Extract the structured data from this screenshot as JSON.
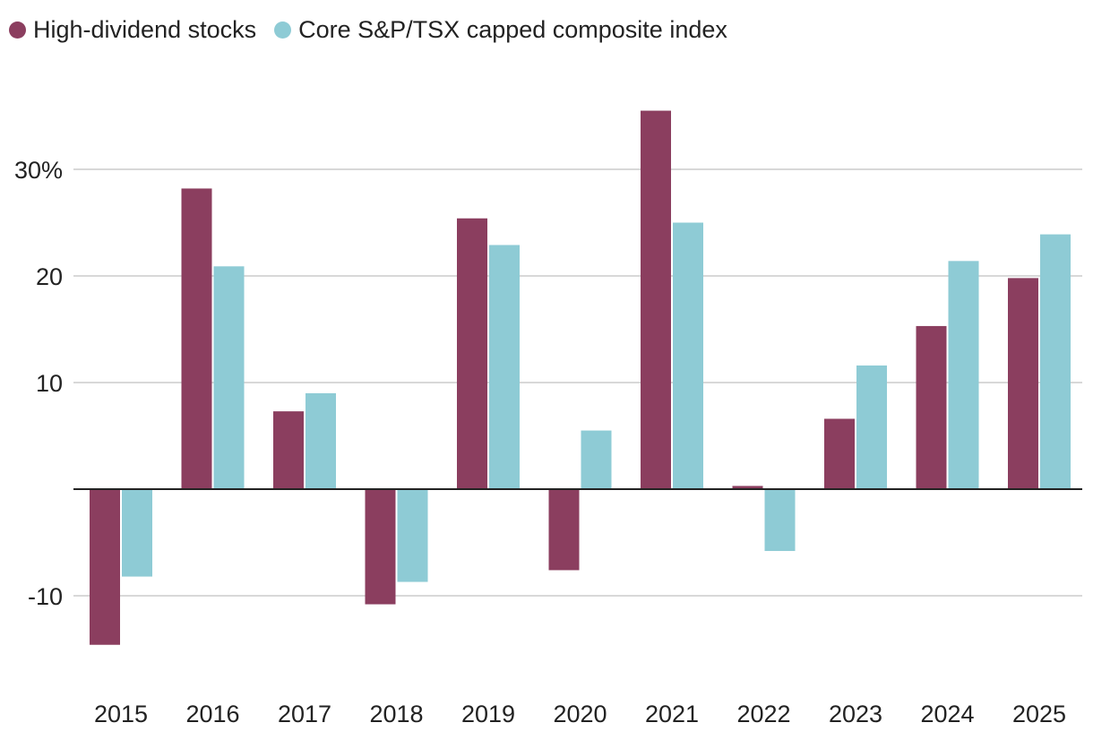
{
  "chart_data": {
    "type": "bar",
    "title": "",
    "xlabel": "",
    "ylabel": "",
    "categories": [
      "2015",
      "2016",
      "2017",
      "2018",
      "2019",
      "2020",
      "2021",
      "2022",
      "2023",
      "2024",
      "2025"
    ],
    "series": [
      {
        "name": "High-dividend stocks",
        "color": "#8b3e5f",
        "values": [
          -14.6,
          28.2,
          7.3,
          -10.8,
          25.4,
          -7.6,
          35.5,
          0.3,
          6.6,
          15.3,
          19.8
        ]
      },
      {
        "name": "Core S&P/TSX capped composite index",
        "color": "#8ecbd5",
        "values": [
          -8.2,
          20.9,
          9.0,
          -8.7,
          22.9,
          5.5,
          25.0,
          -5.8,
          11.6,
          21.4,
          23.9
        ]
      }
    ],
    "yticks": [
      30,
      20,
      10,
      -10
    ],
    "ytick_labels": [
      "30%",
      "20",
      "10",
      "-10"
    ],
    "ylim": [
      -17,
      38
    ],
    "grid": true,
    "legend_placement": "top-left"
  }
}
